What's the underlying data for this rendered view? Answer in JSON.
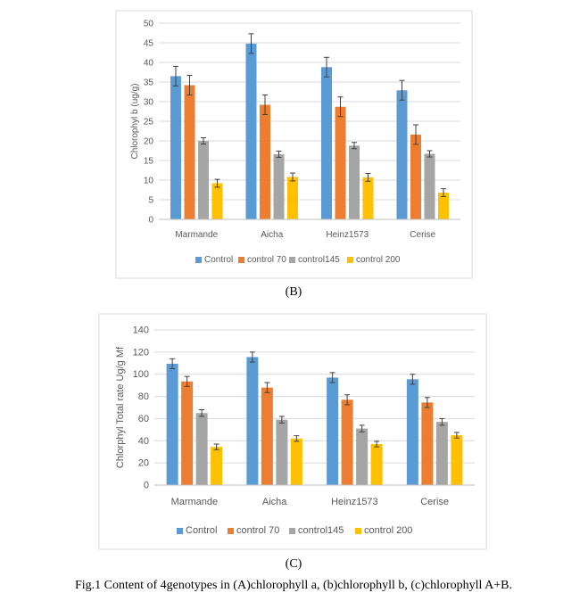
{
  "chart_data": [
    {
      "type": "bar",
      "ylabel": "Chlorophyl b (ug/g)",
      "ylim": [
        0,
        50
      ],
      "yticks": [
        0,
        5,
        10,
        15,
        20,
        25,
        30,
        35,
        40,
        45,
        50
      ],
      "grid": true,
      "legend_position": "bottom",
      "categories": [
        "Marmande",
        "Aicha",
        "Heinz1573",
        "Cerise"
      ],
      "series": [
        {
          "name": "Control",
          "color": "#5B9BD5",
          "values": [
            36.5,
            44.8,
            38.8,
            32.9
          ],
          "errors": [
            2.5,
            2.5,
            2.5,
            2.5
          ]
        },
        {
          "name": "control 70",
          "color": "#ED7D31",
          "values": [
            34.2,
            29.2,
            28.7,
            21.6
          ],
          "errors": [
            2.5,
            2.5,
            2.5,
            2.5
          ]
        },
        {
          "name": "control145",
          "color": "#A5A5A5",
          "values": [
            20.0,
            16.6,
            18.8,
            16.7
          ],
          "errors": [
            0.8,
            0.8,
            0.8,
            0.8
          ]
        },
        {
          "name": "control 200",
          "color": "#FFC000",
          "values": [
            9.2,
            10.8,
            10.7,
            6.8
          ],
          "errors": [
            1.0,
            1.0,
            1.0,
            1.0
          ]
        }
      ]
    },
    {
      "type": "bar",
      "ylabel": "Chlorphyl Total rate Ug/g Mf",
      "ylim": [
        0,
        140
      ],
      "yticks": [
        0,
        20,
        40,
        60,
        80,
        100,
        120,
        140
      ],
      "grid": true,
      "legend_position": "bottom",
      "categories": [
        "Marmande",
        "Aicha",
        "Heinz1573",
        "Cerise"
      ],
      "series": [
        {
          "name": "Control",
          "color": "#5B9BD5",
          "values": [
            109.5,
            115.5,
            97.0,
            95.5
          ],
          "errors": [
            4.5,
            4.5,
            4.5,
            4.5
          ]
        },
        {
          "name": "control 70",
          "color": "#ED7D31",
          "values": [
            93.5,
            88.0,
            77.0,
            74.5
          ],
          "errors": [
            4.5,
            4.5,
            4.5,
            4.5
          ]
        },
        {
          "name": "control145",
          "color": "#A5A5A5",
          "values": [
            65.0,
            59.0,
            51.0,
            57.0
          ],
          "errors": [
            3.0,
            3.0,
            3.0,
            3.0
          ]
        },
        {
          "name": "control 200",
          "color": "#FFC000",
          "values": [
            34.5,
            42.0,
            37.0,
            45.0
          ],
          "errors": [
            2.5,
            2.5,
            2.5,
            2.5
          ]
        }
      ]
    }
  ],
  "panel_labels": [
    "(B)",
    "(C)"
  ],
  "caption": "Fig.1 Content of 4genotypes in (A)chlorophyll a, (b)chlorophyll b, (c)chlorophyll A+B."
}
